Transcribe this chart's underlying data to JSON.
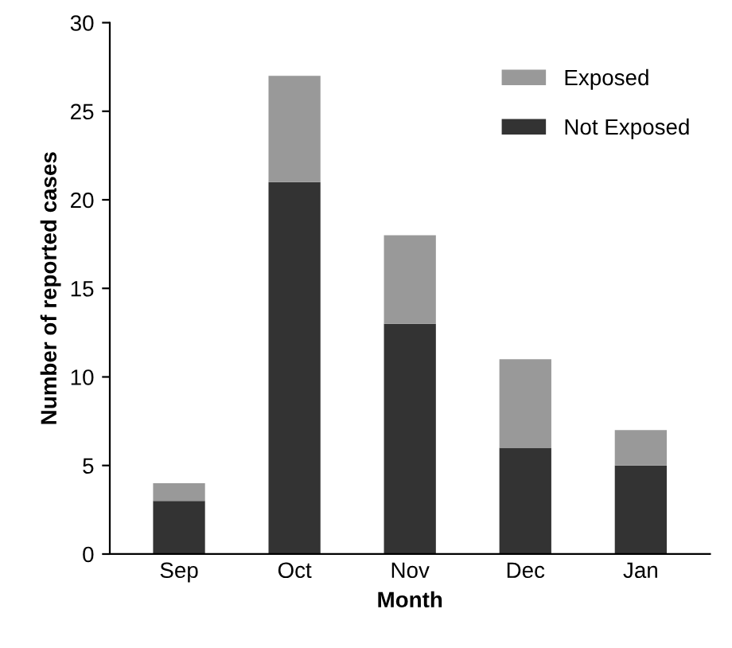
{
  "chart_data": {
    "type": "bar",
    "stacked": true,
    "xlabel": "Month",
    "ylabel": "Number of reported cases",
    "categories": [
      "Sep",
      "Oct",
      "Nov",
      "Dec",
      "Jan"
    ],
    "series": [
      {
        "name": "Not Exposed",
        "color": "#333333",
        "values": [
          3,
          21,
          13,
          6,
          5
        ]
      },
      {
        "name": "Exposed",
        "color": "#999999",
        "values": [
          1,
          6,
          5,
          5,
          2
        ]
      }
    ],
    "ylim": [
      0,
      30
    ],
    "yticks": [
      0,
      5,
      10,
      15,
      20,
      25,
      30
    ],
    "grid": false,
    "legend": "top right"
  }
}
